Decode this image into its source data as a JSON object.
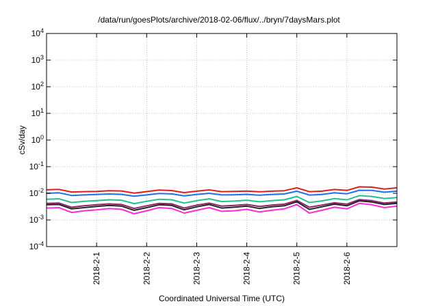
{
  "chart_data": {
    "type": "line",
    "title": "/data/run/goesPlots/archive/2018-02-06/flux/../bryn/7daysMars.plot",
    "xlabel": "Coordinated Universal Time (UTC)",
    "ylabel": "cSv/day",
    "xlim": [
      "2018-01-31T00:00",
      "2018-02-07T00:00"
    ],
    "xticks": [
      "2018-2-1",
      "2018-2-2",
      "2018-2-3",
      "2018-2-4",
      "2018-2-5",
      "2018-2-6"
    ],
    "y_scale": "log",
    "ylim": [
      0.0001,
      10000
    ],
    "yticks": [
      {
        "base": "10",
        "exp": "-4"
      },
      {
        "base": "10",
        "exp": "-3"
      },
      {
        "base": "10",
        "exp": "-2"
      },
      {
        "base": "10",
        "exp": "-1"
      },
      {
        "base": "10",
        "exp": "0"
      },
      {
        "base": "10",
        "exp": "1"
      },
      {
        "base": "10",
        "exp": "2"
      },
      {
        "base": "10",
        "exp": "3"
      },
      {
        "base": "10",
        "exp": "4"
      }
    ],
    "grid": true,
    "series": [
      {
        "color": "#e41a1c",
        "points": [
          [
            "2018-01-31T00:00",
            0.0135
          ],
          [
            "2018-01-31T06:00",
            0.014
          ],
          [
            "2018-01-31T12:00",
            0.0112
          ],
          [
            "2018-01-31T18:00",
            0.0115
          ],
          [
            "2018-02-01T00:00",
            0.0118
          ],
          [
            "2018-02-01T06:00",
            0.0125
          ],
          [
            "2018-02-01T12:00",
            0.0122
          ],
          [
            "2018-02-01T18:00",
            0.0102
          ],
          [
            "2018-02-02T00:00",
            0.0116
          ],
          [
            "2018-02-02T06:00",
            0.0132
          ],
          [
            "2018-02-02T12:00",
            0.0127
          ],
          [
            "2018-02-02T18:00",
            0.0106
          ],
          [
            "2018-02-03T00:00",
            0.012
          ],
          [
            "2018-02-03T06:00",
            0.0134
          ],
          [
            "2018-02-03T12:00",
            0.0115
          ],
          [
            "2018-02-03T18:00",
            0.0117
          ],
          [
            "2018-02-04T00:00",
            0.0121
          ],
          [
            "2018-02-04T06:00",
            0.0114
          ],
          [
            "2018-02-04T12:00",
            0.012
          ],
          [
            "2018-02-04T18:00",
            0.0125
          ],
          [
            "2018-02-05T00:00",
            0.016
          ],
          [
            "2018-02-05T06:00",
            0.0115
          ],
          [
            "2018-02-05T12:00",
            0.012
          ],
          [
            "2018-02-05T18:00",
            0.0139
          ],
          [
            "2018-02-06T00:00",
            0.0128
          ],
          [
            "2018-02-06T06:00",
            0.0175
          ],
          [
            "2018-02-06T12:00",
            0.017
          ],
          [
            "2018-02-06T18:00",
            0.0145
          ],
          [
            "2018-02-07T00:00",
            0.016
          ]
        ]
      },
      {
        "color": "#1e6fe8",
        "points": [
          [
            "2018-01-31T00:00",
            0.01
          ],
          [
            "2018-01-31T06:00",
            0.0104
          ],
          [
            "2018-01-31T12:00",
            0.0083
          ],
          [
            "2018-01-31T18:00",
            0.0087
          ],
          [
            "2018-02-01T00:00",
            0.009
          ],
          [
            "2018-02-01T06:00",
            0.0094
          ],
          [
            "2018-02-01T12:00",
            0.0091
          ],
          [
            "2018-02-01T18:00",
            0.0078
          ],
          [
            "2018-02-02T00:00",
            0.0087
          ],
          [
            "2018-02-02T06:00",
            0.0099
          ],
          [
            "2018-02-02T12:00",
            0.0095
          ],
          [
            "2018-02-02T18:00",
            0.008
          ],
          [
            "2018-02-03T00:00",
            0.009
          ],
          [
            "2018-02-03T06:00",
            0.01
          ],
          [
            "2018-02-03T12:00",
            0.0087
          ],
          [
            "2018-02-03T18:00",
            0.0088
          ],
          [
            "2018-02-04T00:00",
            0.0091
          ],
          [
            "2018-02-04T06:00",
            0.0085
          ],
          [
            "2018-02-04T12:00",
            0.009
          ],
          [
            "2018-02-04T18:00",
            0.0094
          ],
          [
            "2018-02-05T00:00",
            0.012
          ],
          [
            "2018-02-05T06:00",
            0.0086
          ],
          [
            "2018-02-05T12:00",
            0.009
          ],
          [
            "2018-02-05T18:00",
            0.0104
          ],
          [
            "2018-02-06T00:00",
            0.0096
          ],
          [
            "2018-02-06T06:00",
            0.013
          ],
          [
            "2018-02-06T12:00",
            0.0128
          ],
          [
            "2018-02-06T18:00",
            0.011
          ],
          [
            "2018-02-07T00:00",
            0.012
          ]
        ]
      },
      {
        "color": "#1fbf8f",
        "points": [
          [
            "2018-01-31T00:00",
            0.006
          ],
          [
            "2018-01-31T06:00",
            0.0062
          ],
          [
            "2018-01-31T12:00",
            0.0045
          ],
          [
            "2018-01-31T18:00",
            0.005
          ],
          [
            "2018-02-01T00:00",
            0.0053
          ],
          [
            "2018-02-01T06:00",
            0.0057
          ],
          [
            "2018-02-01T12:00",
            0.0055
          ],
          [
            "2018-02-01T18:00",
            0.0041
          ],
          [
            "2018-02-02T00:00",
            0.005
          ],
          [
            "2018-02-02T06:00",
            0.006
          ],
          [
            "2018-02-02T12:00",
            0.0057
          ],
          [
            "2018-02-02T18:00",
            0.0043
          ],
          [
            "2018-02-03T00:00",
            0.0053
          ],
          [
            "2018-02-03T06:00",
            0.0062
          ],
          [
            "2018-02-03T12:00",
            0.0049
          ],
          [
            "2018-02-03T18:00",
            0.0051
          ],
          [
            "2018-02-04T00:00",
            0.0055
          ],
          [
            "2018-02-04T06:00",
            0.0048
          ],
          [
            "2018-02-04T12:00",
            0.0053
          ],
          [
            "2018-02-04T18:00",
            0.0057
          ],
          [
            "2018-02-05T00:00",
            0.0076
          ],
          [
            "2018-02-05T06:00",
            0.0045
          ],
          [
            "2018-02-05T12:00",
            0.0052
          ],
          [
            "2018-02-05T18:00",
            0.0063
          ],
          [
            "2018-02-06T00:00",
            0.0057
          ],
          [
            "2018-02-06T06:00",
            0.0082
          ],
          [
            "2018-02-06T12:00",
            0.0076
          ],
          [
            "2018-02-06T18:00",
            0.0064
          ],
          [
            "2018-02-07T00:00",
            0.0069
          ]
        ]
      },
      {
        "color": "#8a1f6e",
        "points": [
          [
            "2018-01-31T00:00",
            0.0042
          ],
          [
            "2018-01-31T06:00",
            0.0043
          ],
          [
            "2018-01-31T12:00",
            0.003
          ],
          [
            "2018-01-31T18:00",
            0.0034
          ],
          [
            "2018-02-01T00:00",
            0.0037
          ],
          [
            "2018-02-01T06:00",
            0.004
          ],
          [
            "2018-02-01T12:00",
            0.0038
          ],
          [
            "2018-02-01T18:00",
            0.0027
          ],
          [
            "2018-02-02T00:00",
            0.0034
          ],
          [
            "2018-02-02T06:00",
            0.0042
          ],
          [
            "2018-02-02T12:00",
            0.004
          ],
          [
            "2018-02-02T18:00",
            0.0028
          ],
          [
            "2018-02-03T00:00",
            0.0036
          ],
          [
            "2018-02-03T06:00",
            0.0043
          ],
          [
            "2018-02-03T12:00",
            0.0033
          ],
          [
            "2018-02-03T18:00",
            0.0035
          ],
          [
            "2018-02-04T00:00",
            0.0038
          ],
          [
            "2018-02-04T06:00",
            0.0032
          ],
          [
            "2018-02-04T12:00",
            0.0036
          ],
          [
            "2018-02-04T18:00",
            0.0039
          ],
          [
            "2018-02-05T00:00",
            0.0054
          ],
          [
            "2018-02-05T06:00",
            0.003
          ],
          [
            "2018-02-05T12:00",
            0.0036
          ],
          [
            "2018-02-05T18:00",
            0.0044
          ],
          [
            "2018-02-06T00:00",
            0.0039
          ],
          [
            "2018-02-06T06:00",
            0.0058
          ],
          [
            "2018-02-06T12:00",
            0.0053
          ],
          [
            "2018-02-06T18:00",
            0.0043
          ],
          [
            "2018-02-07T00:00",
            0.0047
          ]
        ]
      },
      {
        "color": "#222222",
        "points": [
          [
            "2018-01-31T00:00",
            0.0037
          ],
          [
            "2018-01-31T06:00",
            0.0038
          ],
          [
            "2018-01-31T12:00",
            0.0026
          ],
          [
            "2018-01-31T18:00",
            0.0029
          ],
          [
            "2018-02-01T00:00",
            0.0032
          ],
          [
            "2018-02-01T06:00",
            0.0035
          ],
          [
            "2018-02-01T12:00",
            0.0033
          ],
          [
            "2018-02-01T18:00",
            0.0023
          ],
          [
            "2018-02-02T00:00",
            0.0029
          ],
          [
            "2018-02-02T06:00",
            0.0037
          ],
          [
            "2018-02-02T12:00",
            0.0035
          ],
          [
            "2018-02-02T18:00",
            0.0024
          ],
          [
            "2018-02-03T00:00",
            0.0031
          ],
          [
            "2018-02-03T06:00",
            0.0038
          ],
          [
            "2018-02-03T12:00",
            0.0028
          ],
          [
            "2018-02-03T18:00",
            0.003
          ],
          [
            "2018-02-04T00:00",
            0.0033
          ],
          [
            "2018-02-04T06:00",
            0.0027
          ],
          [
            "2018-02-04T12:00",
            0.0031
          ],
          [
            "2018-02-04T18:00",
            0.0034
          ],
          [
            "2018-02-05T00:00",
            0.0048
          ],
          [
            "2018-02-05T06:00",
            0.0025
          ],
          [
            "2018-02-05T12:00",
            0.0031
          ],
          [
            "2018-02-05T18:00",
            0.0039
          ],
          [
            "2018-02-06T00:00",
            0.0034
          ],
          [
            "2018-02-06T06:00",
            0.0052
          ],
          [
            "2018-02-06T12:00",
            0.0047
          ],
          [
            "2018-02-06T18:00",
            0.0038
          ],
          [
            "2018-02-07T00:00",
            0.0042
          ]
        ]
      },
      {
        "color": "#ff2bd6",
        "points": [
          [
            "2018-01-31T00:00",
            0.0028
          ],
          [
            "2018-01-31T06:00",
            0.0029
          ],
          [
            "2018-01-31T12:00",
            0.0019
          ],
          [
            "2018-01-31T18:00",
            0.0022
          ],
          [
            "2018-02-01T00:00",
            0.0024
          ],
          [
            "2018-02-01T06:00",
            0.0027
          ],
          [
            "2018-02-01T12:00",
            0.0025
          ],
          [
            "2018-02-01T18:00",
            0.0017
          ],
          [
            "2018-02-02T00:00",
            0.0022
          ],
          [
            "2018-02-02T06:00",
            0.0029
          ],
          [
            "2018-02-02T12:00",
            0.0027
          ],
          [
            "2018-02-02T18:00",
            0.0018
          ],
          [
            "2018-02-03T00:00",
            0.0023
          ],
          [
            "2018-02-03T06:00",
            0.0029
          ],
          [
            "2018-02-03T12:00",
            0.0021
          ],
          [
            "2018-02-03T18:00",
            0.0022
          ],
          [
            "2018-02-04T00:00",
            0.0025
          ],
          [
            "2018-02-04T06:00",
            0.002
          ],
          [
            "2018-02-04T12:00",
            0.0023
          ],
          [
            "2018-02-04T18:00",
            0.0026
          ],
          [
            "2018-02-05T00:00",
            0.0038
          ],
          [
            "2018-02-05T06:00",
            0.0018
          ],
          [
            "2018-02-05T12:00",
            0.0023
          ],
          [
            "2018-02-05T18:00",
            0.003
          ],
          [
            "2018-02-06T00:00",
            0.0026
          ],
          [
            "2018-02-06T06:00",
            0.0042
          ],
          [
            "2018-02-06T12:00",
            0.0037
          ],
          [
            "2018-02-06T18:00",
            0.0029
          ],
          [
            "2018-02-07T00:00",
            0.0033
          ]
        ]
      }
    ]
  }
}
